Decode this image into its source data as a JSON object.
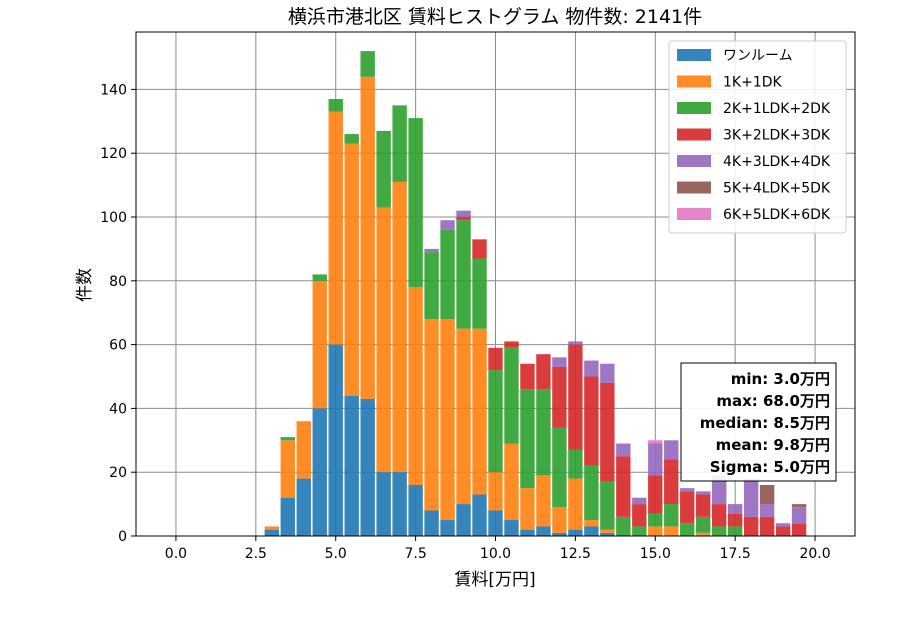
{
  "chart_data": {
    "type": "bar",
    "title": "横浜市港北区 賃料ヒストグラム  物件数: 2141件",
    "xlabel": "賃料[万円]",
    "ylabel": "件数",
    "xlim": [
      -1.25,
      21.25
    ],
    "ylim": [
      0,
      158
    ],
    "x_ticks": [
      0.0,
      2.5,
      5.0,
      7.5,
      10.0,
      12.5,
      15.0,
      17.5,
      20.0
    ],
    "x_tick_labels": [
      "0.0",
      "2.5",
      "5.0",
      "7.5",
      "10.0",
      "12.5",
      "15.0",
      "17.5",
      "20.0"
    ],
    "y_ticks": [
      0,
      20,
      40,
      60,
      80,
      100,
      120,
      140
    ],
    "y_tick_labels": [
      "0",
      "20",
      "40",
      "60",
      "80",
      "100",
      "120",
      "140"
    ],
    "bin_width": 0.5,
    "grid": true,
    "legend_position": "top-right",
    "x": [
      3.0,
      3.5,
      4.0,
      4.5,
      5.0,
      5.5,
      6.0,
      6.5,
      7.0,
      7.5,
      8.0,
      8.5,
      9.0,
      9.5,
      10.0,
      10.5,
      11.0,
      11.5,
      12.0,
      12.5,
      13.0,
      13.5,
      14.0,
      14.5,
      15.0,
      15.5,
      16.0,
      16.5,
      17.0,
      17.5,
      18.0,
      18.5,
      19.0,
      19.5
    ],
    "series": [
      {
        "name": "ワンルーム",
        "color": "#1f77b4",
        "values": [
          2,
          12,
          18,
          40,
          60,
          44,
          43,
          20,
          20,
          16,
          8,
          5,
          10,
          13,
          8,
          5,
          2,
          3,
          1,
          2,
          3,
          1,
          0,
          0,
          0,
          0,
          0,
          0,
          0,
          0,
          0,
          0,
          0,
          0
        ]
      },
      {
        "name": "1K+1DK",
        "color": "#ff7f0e",
        "values": [
          1,
          18,
          18,
          40,
          73,
          79,
          101,
          83,
          91,
          62,
          60,
          63,
          55,
          52,
          12,
          24,
          13,
          16,
          8,
          16,
          2,
          1,
          0,
          0,
          3,
          3,
          0,
          1,
          0,
          0,
          0,
          0,
          0,
          0
        ]
      },
      {
        "name": "2K+1LDK+2DK",
        "color": "#2ca02c",
        "values": [
          0,
          1,
          0,
          2,
          4,
          3,
          8,
          24,
          24,
          53,
          21,
          28,
          34,
          22,
          32,
          30,
          31,
          27,
          25,
          9,
          17,
          15,
          6,
          3,
          4,
          7,
          4,
          5,
          3,
          3,
          0,
          0,
          0,
          0
        ]
      },
      {
        "name": "3K+2LDK+3DK",
        "color": "#d62728",
        "values": [
          0,
          0,
          0,
          0,
          0,
          0,
          0,
          0,
          0,
          0,
          0,
          0,
          1,
          6,
          7,
          2,
          8,
          11,
          19,
          33,
          28,
          31,
          19,
          7,
          12,
          14,
          10,
          7,
          7,
          4,
          6,
          6,
          3,
          4
        ]
      },
      {
        "name": "4K+3LDK+4DK",
        "color": "#9467bd",
        "values": [
          0,
          0,
          0,
          0,
          0,
          0,
          0,
          0,
          0,
          0,
          1,
          3,
          2,
          0,
          0,
          0,
          0,
          0,
          3,
          1,
          5,
          6,
          4,
          2,
          10,
          6,
          1,
          1,
          9,
          3,
          12,
          4,
          1,
          5
        ]
      },
      {
        "name": "5K+4LDK+5DK",
        "color": "#8c564b",
        "values": [
          0,
          0,
          0,
          0,
          0,
          0,
          0,
          0,
          0,
          0,
          0,
          0,
          0,
          0,
          0,
          0,
          0,
          0,
          0,
          0,
          0,
          0,
          0,
          0,
          0,
          0,
          0,
          0,
          0,
          0,
          0,
          6,
          0,
          1
        ]
      },
      {
        "name": "6K+5LDK+6DK",
        "color": "#e377c2",
        "values": [
          0,
          0,
          0,
          0,
          0,
          0,
          0,
          0,
          0,
          0,
          0,
          0,
          0,
          0,
          0,
          0,
          0,
          0,
          0,
          0,
          0,
          0,
          0,
          0,
          1,
          0,
          0,
          0,
          0,
          0,
          0,
          0,
          0,
          0
        ]
      }
    ],
    "stats": [
      "min: 3.0万円",
      "max: 68.0万円",
      "median: 8.5万円",
      "mean: 9.8万円",
      "Sigma: 5.0万円"
    ]
  }
}
